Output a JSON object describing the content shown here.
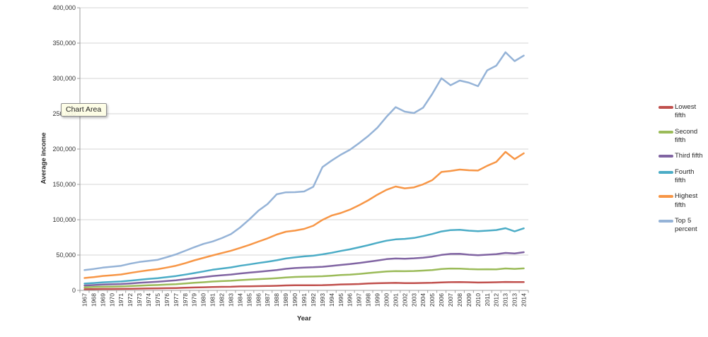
{
  "tooltip": {
    "label": "Chart Area"
  },
  "chart_data": {
    "type": "line",
    "title": "",
    "xlabel": "Year",
    "ylabel": "Average income",
    "ylim": [
      0,
      400000
    ],
    "y_tick_interval": 50000,
    "y_tick_labels": [
      "0",
      "50,000",
      "100,000",
      "150,000",
      "200,000",
      "250,000",
      "300,000",
      "350,000",
      "400,000"
    ],
    "grid": "horizontal",
    "legend_position": "right",
    "categories": [
      "1967",
      "1968",
      "1969",
      "1970",
      "1971",
      "1972",
      "1973",
      "1974",
      "1975",
      "1976",
      "1977",
      "1978",
      "1979",
      "1980",
      "1981",
      "1982",
      "1983",
      "1984",
      "1985",
      "1986",
      "1987",
      "1988",
      "1989",
      "1990",
      "1991",
      "1992",
      "1993",
      "1994",
      "1995",
      "1996",
      "1997",
      "1998",
      "1999",
      "2000",
      "2001",
      "2002",
      "2003",
      "2004",
      "2005",
      "2006",
      "2007",
      "2008",
      "2009",
      "2010",
      "2011",
      "2012",
      "2013",
      "2013",
      "2014"
    ],
    "series": [
      {
        "name": "Lowest fifth",
        "color": "#C0504D",
        "values": [
          1600,
          1800,
          2000,
          2000,
          2100,
          2300,
          2500,
          2800,
          2900,
          3100,
          3300,
          3700,
          4100,
          4400,
          4800,
          5000,
          5100,
          5600,
          5800,
          6000,
          6200,
          6500,
          7000,
          7200,
          7300,
          7300,
          7400,
          7800,
          8400,
          8600,
          9000,
          9700,
          10100,
          10400,
          10600,
          10300,
          10200,
          10500,
          10700,
          11300,
          11600,
          11700,
          11500,
          11100,
          11200,
          11500,
          11900,
          11700,
          11700
        ]
      },
      {
        "name": "Second fifth",
        "color": "#9BBB59",
        "values": [
          4300,
          4700,
          5100,
          5300,
          5600,
          6100,
          6600,
          7200,
          7600,
          8200,
          8800,
          9700,
          10700,
          11500,
          12500,
          13100,
          13600,
          14500,
          15200,
          15900,
          16500,
          17300,
          18300,
          19000,
          19400,
          19600,
          20000,
          20800,
          21700,
          22300,
          23200,
          24500,
          25600,
          26700,
          27300,
          27100,
          27400,
          28000,
          28800,
          30200,
          30900,
          30800,
          30100,
          29800,
          29900,
          29700,
          31000,
          30400,
          31100
        ]
      },
      {
        "name": "Third fifth",
        "color": "#8064A2",
        "values": [
          6900,
          7500,
          8200,
          8600,
          9000,
          9800,
          10700,
          11500,
          12300,
          13300,
          14300,
          15700,
          17200,
          18700,
          20300,
          21400,
          22400,
          23900,
          25100,
          26300,
          27500,
          28800,
          30500,
          31600,
          32300,
          32700,
          33400,
          34600,
          36000,
          37200,
          38700,
          40500,
          42300,
          44200,
          45100,
          44800,
          45400,
          46300,
          47800,
          50200,
          51600,
          51700,
          50500,
          49800,
          50500,
          51200,
          53000,
          52300,
          54000
        ]
      },
      {
        "name": "Fourth fifth",
        "color": "#4BACC6",
        "values": [
          9600,
          10400,
          11400,
          12000,
          12600,
          13800,
          15000,
          16200,
          17300,
          18700,
          20300,
          22300,
          24500,
          26800,
          29200,
          30900,
          32500,
          34800,
          36700,
          38700,
          40500,
          42600,
          45100,
          46800,
          48100,
          49100,
          51000,
          53200,
          55800,
          58100,
          61000,
          64000,
          67300,
          70300,
          72200,
          72900,
          74200,
          76800,
          79800,
          83400,
          85300,
          85700,
          84500,
          83800,
          84500,
          85400,
          88000,
          83500,
          87800
        ]
      },
      {
        "name": "Highest fifth",
        "color": "#F79646",
        "values": [
          17500,
          18800,
          20400,
          21400,
          22500,
          24700,
          26700,
          28500,
          30000,
          32300,
          34900,
          38400,
          42500,
          46000,
          49500,
          52800,
          56100,
          60100,
          64300,
          69000,
          73600,
          79000,
          83000,
          84600,
          87000,
          91500,
          99800,
          105900,
          109500,
          114300,
          120500,
          127500,
          135400,
          142300,
          147000,
          144400,
          145800,
          150100,
          156000,
          167600,
          169000,
          171000,
          170000,
          169600,
          176300,
          181900,
          196000,
          185800,
          194000
        ]
      },
      {
        "name": "Top 5 percent",
        "color": "#95B3D7",
        "values": [
          28700,
          30300,
          32200,
          33500,
          34800,
          37800,
          40200,
          41800,
          43300,
          47000,
          51000,
          56000,
          61100,
          65800,
          69200,
          74000,
          79600,
          89000,
          100300,
          112700,
          122100,
          136000,
          138800,
          139000,
          140000,
          146600,
          174500,
          183700,
          192000,
          199000,
          208300,
          218500,
          230200,
          245600,
          259400,
          253000,
          251000,
          258600,
          278000,
          300200,
          290400,
          297000,
          294000,
          289000,
          311400,
          318100,
          337000,
          324500,
          332300
        ]
      }
    ]
  }
}
